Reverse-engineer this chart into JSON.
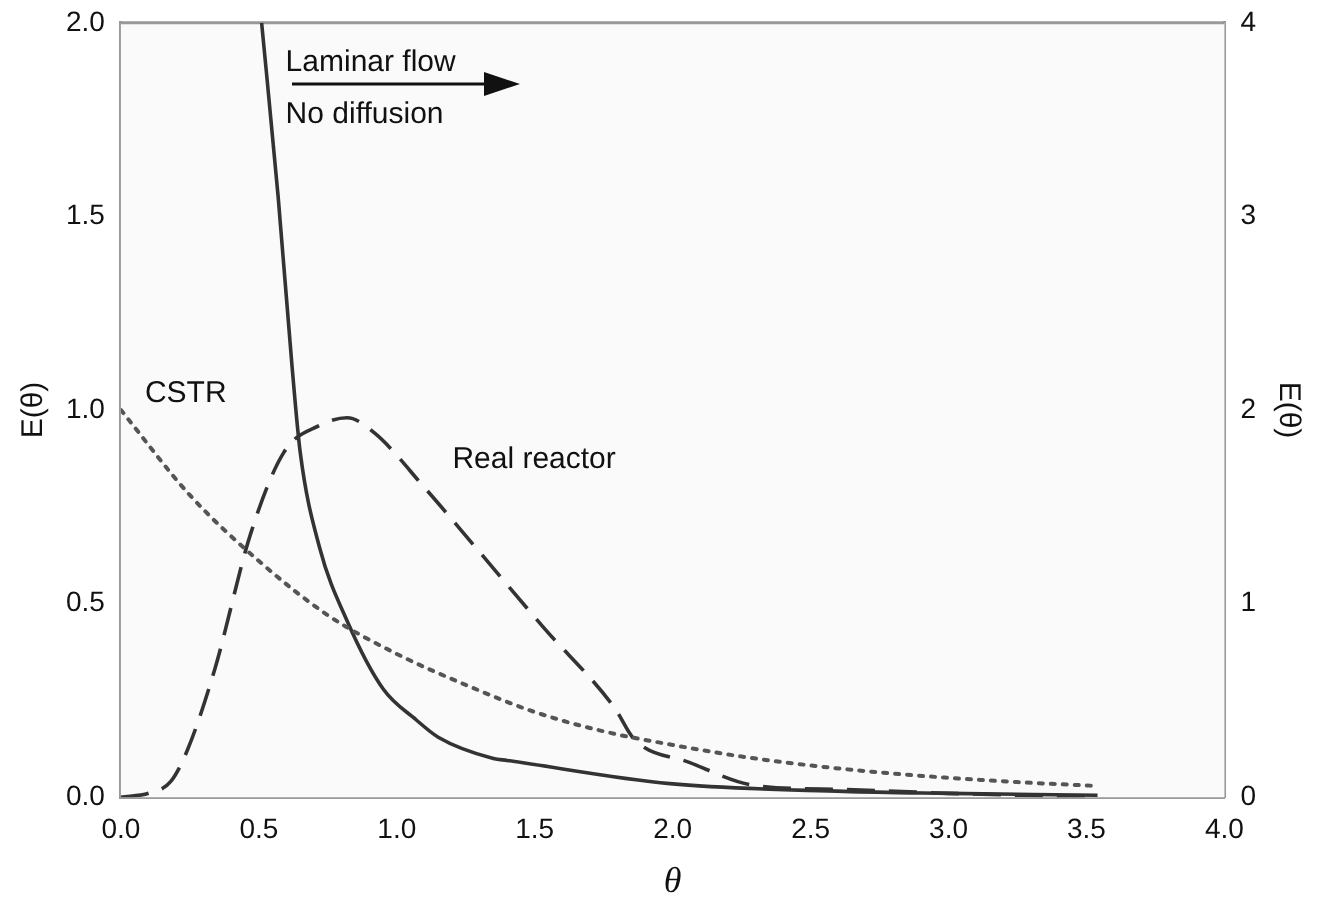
{
  "chart_data": {
    "type": "line",
    "xlabel": "θ",
    "ylabel": "E(θ)",
    "y2label": "E(θ)",
    "xlim": [
      0,
      4
    ],
    "xticks": [
      {
        "value": 0,
        "label": "0.0"
      },
      {
        "value": 0.5,
        "label": "0.5"
      },
      {
        "value": 1,
        "label": "1.0"
      },
      {
        "value": 1.5,
        "label": "1.5"
      },
      {
        "value": 2,
        "label": "2.0"
      },
      {
        "value": 2.5,
        "label": "2.5"
      },
      {
        "value": 3,
        "label": "3.0"
      },
      {
        "value": 3.5,
        "label": "3.5"
      },
      {
        "value": 4,
        "label": "4.0"
      }
    ],
    "ylim": [
      0,
      2
    ],
    "yticks": [
      {
        "value": 0,
        "label": "0.0"
      },
      {
        "value": 0.5,
        "label": "0.5"
      },
      {
        "value": 1,
        "label": "1.0"
      },
      {
        "value": 1.5,
        "label": "1.5"
      },
      {
        "value": 2,
        "label": "2.0"
      }
    ],
    "y2lim": [
      0,
      4
    ],
    "y2ticks": [
      0,
      1,
      2,
      3,
      4
    ],
    "grid": false,
    "legend": false,
    "marker": "none",
    "annotations": [
      "No diffusion"
    ],
    "series": [
      {
        "name": "CSTR",
        "color": "#555555",
        "line_style": "dotted",
        "x": [
          0,
          0.25,
          0.5,
          0.75,
          1,
          1.25,
          1.5,
          1.75,
          2,
          2.25,
          2.5,
          2.75,
          3,
          3.25,
          3.54
        ],
        "values": [
          1,
          0.78,
          0.61,
          0.47,
          0.37,
          0.29,
          0.22,
          0.17,
          0.135,
          0.105,
          0.082,
          0.064,
          0.05,
          0.039,
          0.029
        ]
      },
      {
        "name": "Real reactor",
        "color": "#333333",
        "line_style": "dashed",
        "x": [
          0,
          0.1,
          0.18,
          0.24,
          0.34,
          0.47,
          0.59,
          0.72,
          0.82,
          0.92,
          1.1,
          1.28,
          1.53,
          1.79,
          1.86,
          2.06,
          2.3,
          2.62,
          3.0,
          3.54
        ],
        "values": [
          0,
          0.01,
          0.04,
          0.12,
          0.33,
          0.68,
          0.89,
          0.96,
          0.98,
          0.94,
          0.8,
          0.65,
          0.44,
          0.23,
          0.15,
          0.09,
          0.03,
          0.02,
          0.01,
          0
        ]
      },
      {
        "name": "Laminar flow",
        "color": "#333333",
        "line_style": "solid",
        "axis": "y2",
        "x": [
          0.51,
          0.57,
          0.62,
          0.65,
          0.72,
          0.82,
          0.95,
          1.07,
          1.15,
          1.35,
          1.4,
          1.99,
          2.62,
          3.0,
          3.54
        ],
        "values": [
          4,
          3.1,
          2.23,
          1.78,
          1.29,
          0.91,
          0.56,
          0.4,
          0.31,
          0.2,
          0.19,
          0.07,
          0.03,
          0.02,
          0.01
        ]
      }
    ]
  }
}
